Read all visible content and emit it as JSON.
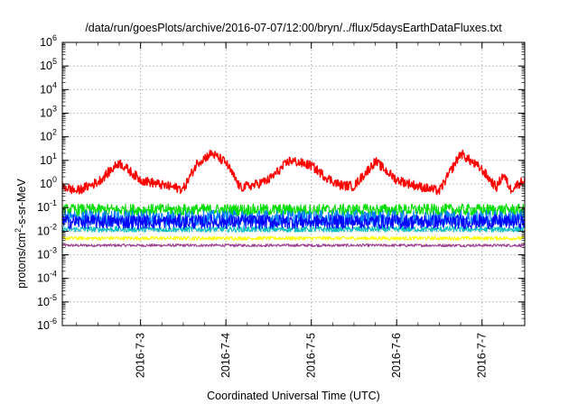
{
  "chart_data": {
    "type": "line",
    "title": "/data/run/goesPlots/archive/2016-07-07/12:00/bryn/../flux/5daysEarthDataFluxes.txt",
    "xlabel": "Coordinated Universal Time (UTC)",
    "ylabel": "protons/cm²-s-sr-MeV",
    "ylabel_base": "protons/cm",
    "ylabel_sup": "2",
    "ylabel_rest": "-s-sr-MeV",
    "y_scale": "log",
    "ylim": [
      1e-06,
      1000000.0
    ],
    "xlim": [
      "2016-07-02T02:00",
      "2016-07-07T12:00"
    ],
    "grid": true,
    "legend": "none",
    "y_ticks": [
      {
        "value": 1000000.0,
        "base": "10",
        "exp": "6"
      },
      {
        "value": 100000.0,
        "base": "10",
        "exp": "5"
      },
      {
        "value": 10000.0,
        "base": "10",
        "exp": "4"
      },
      {
        "value": 1000.0,
        "base": "10",
        "exp": "3"
      },
      {
        "value": 100.0,
        "base": "10",
        "exp": "2"
      },
      {
        "value": 10.0,
        "base": "10",
        "exp": "1"
      },
      {
        "value": 1.0,
        "base": "10",
        "exp": "0"
      },
      {
        "value": 0.1,
        "base": "10",
        "exp": "-1"
      },
      {
        "value": 0.01,
        "base": "10",
        "exp": "-2"
      },
      {
        "value": 0.001,
        "base": "10",
        "exp": "-3"
      },
      {
        "value": 0.0001,
        "base": "10",
        "exp": "-4"
      },
      {
        "value": 1e-05,
        "base": "10",
        "exp": "-5"
      },
      {
        "value": 1e-06,
        "base": "10",
        "exp": "-6"
      }
    ],
    "x_ticks": [
      {
        "value": "2016-07-03T00:00",
        "label": "2016-7-3"
      },
      {
        "value": "2016-07-04T00:00",
        "label": "2016-7-4"
      },
      {
        "value": "2016-07-05T00:00",
        "label": "2016-7-5"
      },
      {
        "value": "2016-07-06T00:00",
        "label": "2016-7-6"
      },
      {
        "value": "2016-07-07T00:00",
        "label": "2016-7-7"
      }
    ],
    "series": [
      {
        "color": "#ff0000",
        "noise": 0.2,
        "x": [
          "2016-07-02T02:00",
          "2016-07-02T06:00",
          "2016-07-02T12:00",
          "2016-07-02T18:00",
          "2016-07-03T00:00",
          "2016-07-03T06:00",
          "2016-07-03T12:00",
          "2016-07-03T16:00",
          "2016-07-03T20:00",
          "2016-07-04T00:00",
          "2016-07-04T04:00",
          "2016-07-04T08:00",
          "2016-07-04T12:00",
          "2016-07-04T18:00",
          "2016-07-05T00:00",
          "2016-07-05T04:00",
          "2016-07-05T08:00",
          "2016-07-05T12:00",
          "2016-07-05T18:00",
          "2016-07-06T00:00",
          "2016-07-06T06:00",
          "2016-07-06T12:00",
          "2016-07-06T18:00",
          "2016-07-07T00:00",
          "2016-07-07T04:00",
          "2016-07-07T06:00",
          "2016-07-07T08:00",
          "2016-07-07T12:00"
        ],
        "y": [
          0.8,
          0.5,
          1.2,
          8,
          1.5,
          0.9,
          0.6,
          8,
          20,
          8,
          0.7,
          0.9,
          1.5,
          10,
          6,
          2,
          0.9,
          0.8,
          9,
          1.5,
          0.8,
          0.5,
          20,
          4,
          0.7,
          2.5,
          0.6,
          1.5
        ]
      },
      {
        "color": "#00dd00",
        "noise": 0.25,
        "x": [
          "2016-07-02T02:00",
          "2016-07-07T12:00"
        ],
        "y": [
          0.08,
          0.08
        ]
      },
      {
        "color": "#0080ff",
        "noise": 0.35,
        "x": [
          "2016-07-02T02:00",
          "2016-07-07T12:00"
        ],
        "y": [
          0.035,
          0.035
        ]
      },
      {
        "color": "#0000ff",
        "noise": 0.3,
        "x": [
          "2016-07-02T02:00",
          "2016-07-07T12:00"
        ],
        "y": [
          0.025,
          0.025
        ]
      },
      {
        "color": "#00c0c0",
        "noise": 0.12,
        "x": [
          "2016-07-02T02:00",
          "2016-07-07T12:00"
        ],
        "y": [
          0.012,
          0.012
        ]
      },
      {
        "color": "#ffff00",
        "noise": 0.08,
        "x": [
          "2016-07-02T02:00",
          "2016-07-07T12:00"
        ],
        "y": [
          0.005,
          0.005
        ]
      },
      {
        "color": "#9b3f8f",
        "noise": 0.06,
        "x": [
          "2016-07-02T02:00",
          "2016-07-07T12:00"
        ],
        "y": [
          0.0025,
          0.0025
        ]
      }
    ]
  }
}
